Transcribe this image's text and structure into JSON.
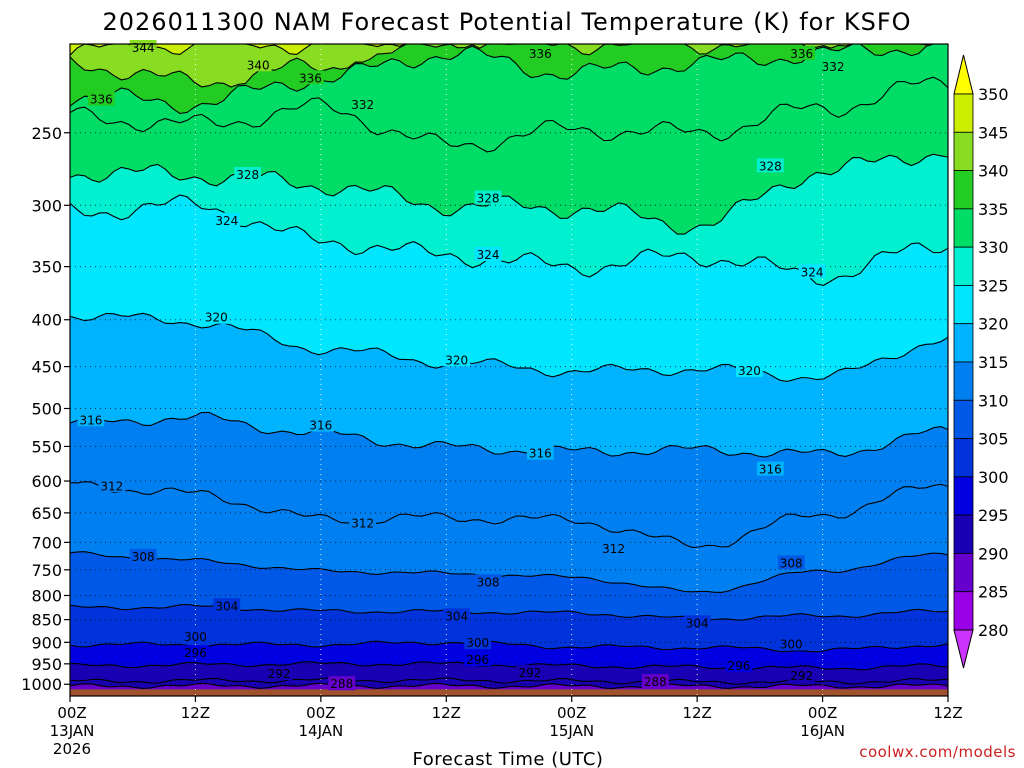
{
  "chart_data": {
    "type": "heatmap",
    "title": "2026011300 NAM Forecast Potential Temperature (K) for KSFO",
    "xlabel": "Forecast Time (UTC)",
    "ylabel": "",
    "watermark": "coolwx.com/models",
    "x_ticks": [
      {
        "hours": 0,
        "line1": "00Z",
        "line2": "13JAN",
        "line3": "2026"
      },
      {
        "hours": 12,
        "line1": "12Z",
        "line2": "",
        "line3": ""
      },
      {
        "hours": 24,
        "line1": "00Z",
        "line2": "14JAN",
        "line3": ""
      },
      {
        "hours": 36,
        "line1": "12Z",
        "line2": "",
        "line3": ""
      },
      {
        "hours": 48,
        "line1": "00Z",
        "line2": "15JAN",
        "line3": ""
      },
      {
        "hours": 60,
        "line1": "12Z",
        "line2": "",
        "line3": ""
      },
      {
        "hours": 72,
        "line1": "00Z",
        "line2": "16JAN",
        "line3": ""
      },
      {
        "hours": 84,
        "line1": "12Z",
        "line2": "",
        "line3": ""
      }
    ],
    "xlim": [
      0,
      84
    ],
    "y_ticks": [
      250,
      300,
      350,
      400,
      450,
      500,
      550,
      600,
      650,
      700,
      750,
      800,
      850,
      900,
      950,
      1000
    ],
    "ylim": [
      1030,
      200
    ],
    "y_scale": "log-pressure",
    "colorbar": {
      "levels": [
        280,
        285,
        290,
        295,
        300,
        305,
        310,
        315,
        320,
        325,
        330,
        335,
        340,
        345,
        350
      ],
      "colors": [
        "#cc33ff",
        "#9900e6",
        "#6600cc",
        "#1a00b3",
        "#0000e0",
        "#0033d9",
        "#0059e6",
        "#0080f0",
        "#00b3ff",
        "#00e6ff",
        "#00f0d0",
        "#00dd66",
        "#22cc22",
        "#88dd22",
        "#ccee00",
        "#ffff00"
      ],
      "extend": "both",
      "orientation": "vertical",
      "placement": "right"
    },
    "contour_interval": 4,
    "terrain_color": "#a0522d",
    "terrain_top_hpa": 1013,
    "series": [
      {
        "theta": 288,
        "p": [
          1005,
          1004,
          1004,
          1004,
          1005,
          1005,
          1005,
          1004
        ]
      },
      {
        "theta": 292,
        "p": [
          993,
          991,
          990,
          990,
          992,
          994,
          994,
          991
        ]
      },
      {
        "theta": 296,
        "p": [
          955,
          952,
          950,
          950,
          955,
          958,
          960,
          955
        ]
      },
      {
        "theta": 300,
        "p": [
          905,
          905,
          905,
          900,
          910,
          912,
          918,
          905
        ]
      },
      {
        "theta": 304,
        "p": [
          825,
          823,
          832,
          833,
          836,
          848,
          842,
          832
        ]
      },
      {
        "theta": 308,
        "p": [
          720,
          733,
          752,
          757,
          764,
          793,
          752,
          720
        ]
      },
      {
        "theta": 312,
        "p": [
          605,
          620,
          660,
          658,
          662,
          705,
          652,
          605
        ]
      },
      {
        "theta": 316,
        "p": [
          518,
          512,
          533,
          551,
          557,
          555,
          561,
          530
        ]
      },
      {
        "theta": 320,
        "p": [
          395,
          402,
          430,
          445,
          455,
          453,
          462,
          420
        ]
      },
      {
        "theta": 324,
        "p": [
          305,
          300,
          328,
          340,
          350,
          341,
          358,
          330
        ]
      },
      {
        "theta": 328,
        "p": [
          276,
          278,
          285,
          300,
          302,
          315,
          275,
          262
        ]
      },
      {
        "theta": 332,
        "p": [
          240,
          245,
          235,
          258,
          248,
          250,
          235,
          220
        ]
      },
      {
        "theta": 336,
        "p": [
          228,
          232,
          218,
          205,
          215,
          210,
          205,
          200
        ]
      },
      {
        "theta": 340,
        "p": [
          210,
          220,
          212,
          200,
          200,
          200,
          200,
          200
        ]
      },
      {
        "theta": 344,
        "p": [
          203,
          200,
          200,
          200,
          200,
          200,
          200,
          200
        ]
      }
    ],
    "contour_labels": [
      {
        "text": "344",
        "hours": 7,
        "p": 202
      },
      {
        "text": "340",
        "hours": 18,
        "p": 211
      },
      {
        "text": "336",
        "hours": 3,
        "p": 230
      },
      {
        "text": "336",
        "hours": 23,
        "p": 218
      },
      {
        "text": "336",
        "hours": 45,
        "p": 205
      },
      {
        "text": "336",
        "hours": 70,
        "p": 205
      },
      {
        "text": "332",
        "hours": 28,
        "p": 233
      },
      {
        "text": "332",
        "hours": 73,
        "p": 212
      },
      {
        "text": "328",
        "hours": 17,
        "p": 278
      },
      {
        "text": "328",
        "hours": 40,
        "p": 295
      },
      {
        "text": "328",
        "hours": 67,
        "p": 272
      },
      {
        "text": "324",
        "hours": 15,
        "p": 312
      },
      {
        "text": "324",
        "hours": 40,
        "p": 340
      },
      {
        "text": "324",
        "hours": 71,
        "p": 355
      },
      {
        "text": "320",
        "hours": 14,
        "p": 398
      },
      {
        "text": "320",
        "hours": 37,
        "p": 443
      },
      {
        "text": "320",
        "hours": 65,
        "p": 455
      },
      {
        "text": "316",
        "hours": 2,
        "p": 515
      },
      {
        "text": "316",
        "hours": 24,
        "p": 522
      },
      {
        "text": "316",
        "hours": 45,
        "p": 560
      },
      {
        "text": "316",
        "hours": 67,
        "p": 583
      },
      {
        "text": "312",
        "hours": 4,
        "p": 608
      },
      {
        "text": "312",
        "hours": 28,
        "p": 668
      },
      {
        "text": "312",
        "hours": 52,
        "p": 712
      },
      {
        "text": "308",
        "hours": 7,
        "p": 726
      },
      {
        "text": "308",
        "hours": 40,
        "p": 774
      },
      {
        "text": "308",
        "hours": 69,
        "p": 738
      },
      {
        "text": "304",
        "hours": 15,
        "p": 822
      },
      {
        "text": "304",
        "hours": 37,
        "p": 843
      },
      {
        "text": "304",
        "hours": 60,
        "p": 858
      },
      {
        "text": "300",
        "hours": 12,
        "p": 888
      },
      {
        "text": "300",
        "hours": 39,
        "p": 902
      },
      {
        "text": "300",
        "hours": 69,
        "p": 905
      },
      {
        "text": "296",
        "hours": 12,
        "p": 925
      },
      {
        "text": "296",
        "hours": 39,
        "p": 941
      },
      {
        "text": "296",
        "hours": 64,
        "p": 955
      },
      {
        "text": "292",
        "hours": 20,
        "p": 975
      },
      {
        "text": "292",
        "hours": 44,
        "p": 972
      },
      {
        "text": "292",
        "hours": 70,
        "p": 979
      },
      {
        "text": "288",
        "hours": 26,
        "p": 1000
      },
      {
        "text": "288",
        "hours": 56,
        "p": 995
      }
    ]
  }
}
